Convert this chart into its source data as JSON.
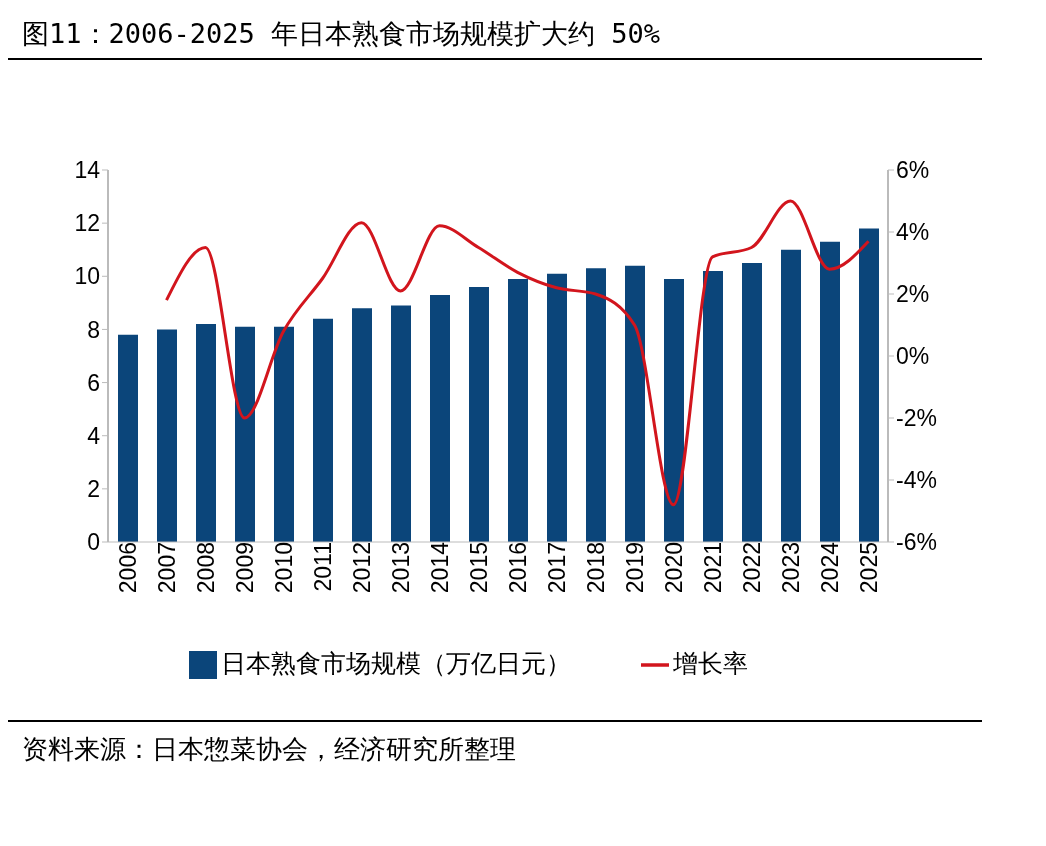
{
  "chart_data": {
    "type": "bar",
    "title": "图11：2006-2025 年日本熟食市场规模扩大约 50%",
    "categories": [
      "2006",
      "2007",
      "2008",
      "2009",
      "2010",
      "2011",
      "2012",
      "2013",
      "2014",
      "2015",
      "2016",
      "2017",
      "2018",
      "2019",
      "2020",
      "2021",
      "2022",
      "2023",
      "2024",
      "2025"
    ],
    "series": [
      {
        "name": "日本熟食市场规模（万亿日元）",
        "color": "#0b457a",
        "values": [
          7.8,
          8.0,
          8.2,
          8.1,
          8.1,
          8.4,
          8.8,
          8.9,
          9.3,
          9.6,
          9.9,
          10.1,
          10.3,
          10.4,
          9.9,
          10.2,
          10.5,
          11.0,
          11.3,
          11.8
        ]
      },
      {
        "name": "增长率",
        "type": "line",
        "axis": "y2",
        "color": "#d2151d",
        "values": [
          null,
          1.8,
          3.5,
          -2.0,
          0.8,
          2.5,
          4.3,
          2.1,
          4.2,
          3.5,
          2.7,
          2.2,
          2.0,
          1.0,
          -4.8,
          3.2,
          3.5,
          5.0,
          2.8,
          3.7
        ]
      }
    ],
    "ylim": [
      0,
      14
    ],
    "yticks": [
      0,
      2,
      4,
      6,
      8,
      10,
      12,
      14
    ],
    "y2lim": [
      -6,
      6
    ],
    "y2ticks": [
      {
        "value": -6,
        "label": "-6%"
      },
      {
        "value": -4,
        "label": "-4%"
      },
      {
        "value": -2,
        "label": "-2%"
      },
      {
        "value": 0,
        "label": "0%"
      },
      {
        "value": 2,
        "label": "2%"
      },
      {
        "value": 4,
        "label": "4%"
      },
      {
        "value": 6,
        "label": "6%"
      }
    ],
    "grid": false,
    "legend": "bottom",
    "marker": "none",
    "line_style": "solid",
    "annotations": [
      "资料来源：日本惣菜协会，经济研究所整理"
    ]
  }
}
